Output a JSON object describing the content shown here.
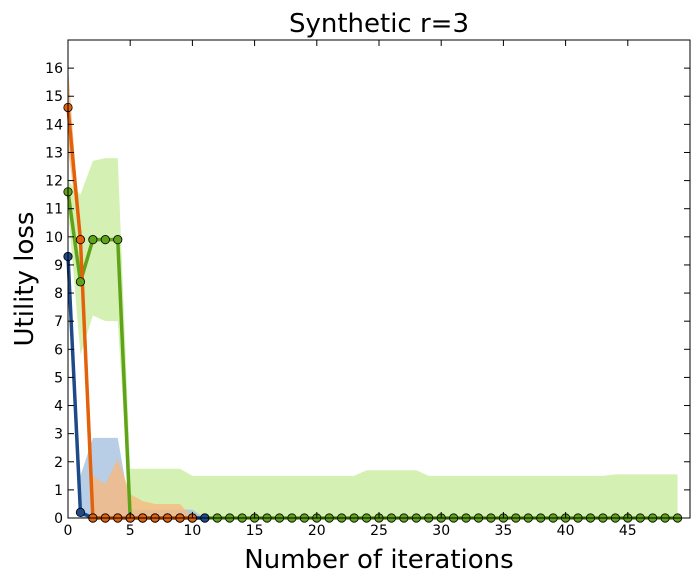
{
  "chart_data": {
    "type": "line",
    "title": "Synthetic r=3",
    "xlabel": "Number of iterations",
    "ylabel": "Utility loss",
    "xlim": [
      0,
      50
    ],
    "ylim": [
      0,
      17
    ],
    "xticks": [
      0,
      5,
      10,
      15,
      20,
      25,
      30,
      35,
      40,
      45
    ],
    "yticks": [
      0,
      1,
      2,
      3,
      4,
      5,
      6,
      7,
      8,
      9,
      10,
      11,
      12,
      13,
      14,
      15,
      16
    ],
    "grid": false,
    "legend": "none",
    "series": [
      {
        "color": "#5fa319",
        "band_color": "#c9ec9f",
        "x": [
          0,
          1,
          2,
          3,
          4,
          5,
          6,
          7,
          8,
          9,
          10,
          11,
          12,
          13,
          14,
          15,
          16,
          17,
          18,
          19,
          20,
          21,
          22,
          23,
          24,
          25,
          26,
          27,
          28,
          29,
          30,
          31,
          32,
          33,
          34,
          35,
          36,
          37,
          38,
          39,
          40,
          41,
          42,
          43,
          44,
          45,
          46,
          47,
          48,
          49
        ],
        "values": [
          11.6,
          8.4,
          9.9,
          9.9,
          9.9,
          0,
          0,
          0,
          0,
          0,
          0,
          0,
          0,
          0,
          0,
          0,
          0,
          0,
          0,
          0,
          0,
          0,
          0,
          0,
          0,
          0,
          0,
          0,
          0,
          0,
          0,
          0,
          0,
          0,
          0,
          0,
          0,
          0,
          0,
          0,
          0,
          0,
          0,
          0,
          0,
          0,
          0,
          0,
          0,
          0
        ],
        "band_upper": [
          12.0,
          11.5,
          12.7,
          12.8,
          12.8,
          1.75,
          1.75,
          1.75,
          1.75,
          1.75,
          1.5,
          1.5,
          1.5,
          1.5,
          1.5,
          1.5,
          1.5,
          1.5,
          1.5,
          1.5,
          1.5,
          1.5,
          1.5,
          1.5,
          1.7,
          1.7,
          1.7,
          1.7,
          1.7,
          1.5,
          1.5,
          1.5,
          1.5,
          1.5,
          1.5,
          1.5,
          1.5,
          1.5,
          1.5,
          1.5,
          1.5,
          1.5,
          1.5,
          1.5,
          1.55,
          1.55,
          1.55,
          1.55,
          1.55,
          1.55
        ],
        "band_lower": [
          11.0,
          5.8,
          7.2,
          7.0,
          7.0,
          0,
          0,
          0,
          0,
          0,
          0,
          0,
          0,
          0,
          0,
          0,
          0,
          0,
          0,
          0,
          0,
          0,
          0,
          0,
          0,
          0,
          0,
          0,
          0,
          0,
          0,
          0,
          0,
          0,
          0,
          0,
          0,
          0,
          0,
          0,
          0,
          0,
          0,
          0,
          0,
          0,
          0,
          0,
          0,
          0
        ]
      },
      {
        "color": "#1f4a8a",
        "band_color": "#a6c0e0",
        "x": [
          0,
          1,
          2,
          3,
          4,
          5,
          6,
          7,
          8,
          9,
          10,
          11
        ],
        "values": [
          9.3,
          0.2,
          0,
          0,
          0,
          0,
          0,
          0,
          0,
          0,
          0,
          0
        ],
        "band_upper": [
          9.5,
          1.5,
          2.85,
          2.85,
          2.85,
          0.3,
          0.3,
          0.3,
          0.3,
          0.3,
          0.3,
          0
        ],
        "band_lower": [
          9.1,
          0,
          0,
          0,
          0,
          0,
          0,
          0,
          0,
          0,
          0,
          0
        ]
      },
      {
        "color": "#e36209",
        "band_color": "#f7b980",
        "x": [
          0,
          1,
          2,
          3,
          4,
          5,
          6,
          7,
          8,
          9,
          10
        ],
        "values": [
          14.6,
          9.9,
          0,
          0,
          0,
          0,
          0,
          0,
          0,
          0,
          0
        ],
        "band_upper": [
          16.1,
          10.0,
          1.5,
          1.2,
          2.1,
          0.85,
          0.6,
          0.5,
          0.5,
          0.5,
          0
        ],
        "band_lower": [
          13.1,
          9.8,
          0,
          0,
          0,
          0,
          0,
          0,
          0,
          0,
          0
        ]
      }
    ]
  }
}
